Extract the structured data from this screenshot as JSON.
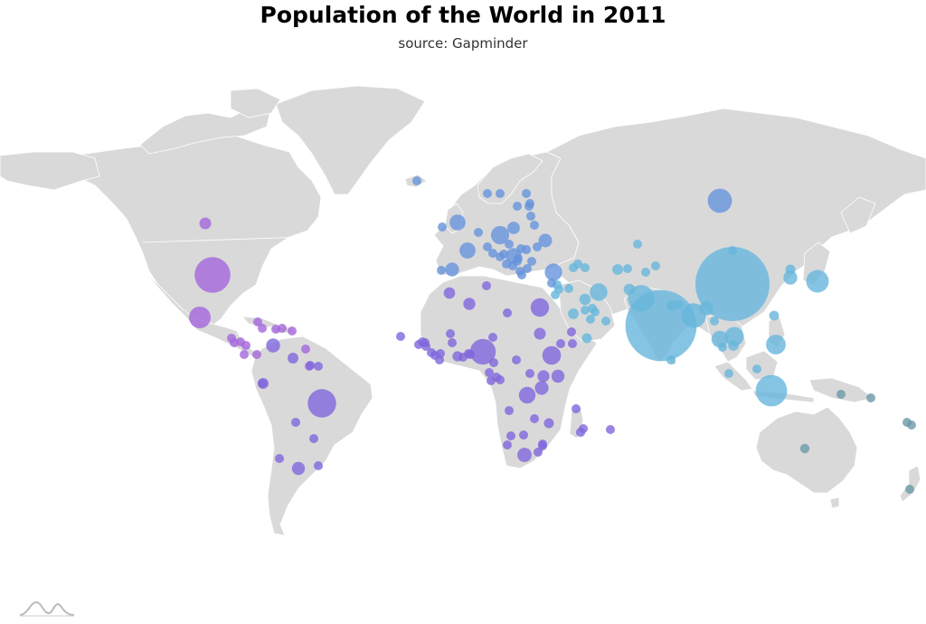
{
  "title": "Population of the World in 2011",
  "subtitle": "source: Gapminder",
  "colors": {
    "land": "#d9d9d9",
    "border": "#ffffff",
    "north_america": "#a467dc",
    "south_america_africa": "#8067dc",
    "europe": "#6794dc",
    "asia": "#67b7dc",
    "oceania": "#6c9aa8"
  },
  "logo_icon": "amcharts-logo-icon",
  "bubbles": [
    {
      "id": "us",
      "group": "north_america",
      "value": 313
    },
    {
      "id": "ca",
      "group": "north_america",
      "value": 34
    },
    {
      "id": "mx",
      "group": "north_america",
      "value": 115
    },
    {
      "id": "gt",
      "group": "north_america",
      "value": 15
    },
    {
      "id": "hn",
      "group": "north_america",
      "value": 8
    },
    {
      "id": "sv",
      "group": "north_america",
      "value": 6
    },
    {
      "id": "ni",
      "group": "north_america",
      "value": 6
    },
    {
      "id": "cr",
      "group": "north_america",
      "value": 5
    },
    {
      "id": "pa",
      "group": "north_america",
      "value": 4
    },
    {
      "id": "cu",
      "group": "north_america",
      "value": 11
    },
    {
      "id": "ht",
      "group": "north_america",
      "value": 10
    },
    {
      "id": "do",
      "group": "north_america",
      "value": 10
    },
    {
      "id": "jm",
      "group": "north_america",
      "value": 3
    },
    {
      "id": "pr",
      "group": "north_america",
      "value": 4
    },
    {
      "id": "tt",
      "group": "north_america",
      "value": 1
    },
    {
      "id": "bz",
      "group": "north_america",
      "value": 1
    },
    {
      "id": "br",
      "group": "south_america",
      "value": 197
    },
    {
      "id": "co",
      "group": "south_america",
      "value": 47
    },
    {
      "id": "ve",
      "group": "south_america",
      "value": 29
    },
    {
      "id": "pe",
      "group": "south_america",
      "value": 29
    },
    {
      "id": "ar",
      "group": "south_america",
      "value": 41
    },
    {
      "id": "cl",
      "group": "south_america",
      "value": 17
    },
    {
      "id": "ec",
      "group": "south_america",
      "value": 15
    },
    {
      "id": "bo",
      "group": "south_america",
      "value": 10
    },
    {
      "id": "py",
      "group": "south_america",
      "value": 7
    },
    {
      "id": "uy",
      "group": "south_america",
      "value": 3
    },
    {
      "id": "gy",
      "group": "south_america",
      "value": 1
    },
    {
      "id": "sr",
      "group": "south_america",
      "value": 1
    },
    {
      "id": "ng",
      "group": "africa",
      "value": 162
    },
    {
      "id": "et",
      "group": "africa",
      "value": 85
    },
    {
      "id": "eg",
      "group": "africa",
      "value": 83
    },
    {
      "id": "cd",
      "group": "africa",
      "value": 68
    },
    {
      "id": "za",
      "group": "africa",
      "value": 50
    },
    {
      "id": "tz",
      "group": "africa",
      "value": 46
    },
    {
      "id": "ke",
      "group": "africa",
      "value": 42
    },
    {
      "id": "dz",
      "group": "africa",
      "value": 36
    },
    {
      "id": "ug",
      "group": "africa",
      "value": 35
    },
    {
      "id": "ma",
      "group": "africa",
      "value": 32
    },
    {
      "id": "sd",
      "group": "africa",
      "value": 34
    },
    {
      "id": "gh",
      "group": "africa",
      "value": 25
    },
    {
      "id": "mz",
      "group": "africa",
      "value": 24
    },
    {
      "id": "mg",
      "group": "africa",
      "value": 21
    },
    {
      "id": "cm",
      "group": "africa",
      "value": 20
    },
    {
      "id": "ci",
      "group": "africa",
      "value": 20
    },
    {
      "id": "ao",
      "group": "africa",
      "value": 20
    },
    {
      "id": "ne",
      "group": "africa",
      "value": 16
    },
    {
      "id": "bf",
      "group": "africa",
      "value": 17
    },
    {
      "id": "ml",
      "group": "africa",
      "value": 16
    },
    {
      "id": "mw",
      "group": "africa",
      "value": 15
    },
    {
      "id": "zm",
      "group": "africa",
      "value": 13
    },
    {
      "id": "sn",
      "group": "africa",
      "value": 13
    },
    {
      "id": "zw",
      "group": "africa",
      "value": 13
    },
    {
      "id": "td",
      "group": "africa",
      "value": 12
    },
    {
      "id": "gn",
      "group": "africa",
      "value": 10
    },
    {
      "id": "rw",
      "group": "africa",
      "value": 11
    },
    {
      "id": "bi",
      "group": "africa",
      "value": 9
    },
    {
      "id": "tn",
      "group": "africa",
      "value": 11
    },
    {
      "id": "so",
      "group": "africa",
      "value": 10
    },
    {
      "id": "bj",
      "group": "africa",
      "value": 9
    },
    {
      "id": "ss",
      "group": "africa",
      "value": 10
    },
    {
      "id": "tg",
      "group": "africa",
      "value": 6
    },
    {
      "id": "ly",
      "group": "africa",
      "value": 6
    },
    {
      "id": "sl",
      "group": "africa",
      "value": 6
    },
    {
      "id": "lr",
      "group": "africa",
      "value": 4
    },
    {
      "id": "cf",
      "group": "africa",
      "value": 4
    },
    {
      "id": "mr",
      "group": "africa",
      "value": 4
    },
    {
      "id": "er",
      "group": "africa",
      "value": 5
    },
    {
      "id": "ga",
      "group": "africa",
      "value": 2
    },
    {
      "id": "cg",
      "group": "africa",
      "value": 4
    },
    {
      "id": "na",
      "group": "africa",
      "value": 2
    },
    {
      "id": "bw",
      "group": "africa",
      "value": 2
    },
    {
      "id": "ls",
      "group": "africa",
      "value": 2
    },
    {
      "id": "sz",
      "group": "africa",
      "value": 1
    },
    {
      "id": "gm",
      "group": "africa",
      "value": 2
    },
    {
      "id": "gw",
      "group": "africa",
      "value": 2
    },
    {
      "id": "gq",
      "group": "africa",
      "value": 1
    },
    {
      "id": "dj",
      "group": "africa",
      "value": 1
    },
    {
      "id": "cv",
      "group": "africa",
      "value": 1
    },
    {
      "id": "mu",
      "group": "africa",
      "value": 1
    },
    {
      "id": "km",
      "group": "africa",
      "value": 1
    },
    {
      "id": "ru",
      "group": "europe",
      "value": 143
    },
    {
      "id": "de",
      "group": "europe",
      "value": 82
    },
    {
      "id": "fr",
      "group": "europe",
      "value": 63
    },
    {
      "id": "gb",
      "group": "europe",
      "value": 62
    },
    {
      "id": "it",
      "group": "europe",
      "value": 61
    },
    {
      "id": "es",
      "group": "europe",
      "value": 46
    },
    {
      "id": "ua",
      "group": "europe",
      "value": 45
    },
    {
      "id": "pl",
      "group": "europe",
      "value": 38
    },
    {
      "id": "ro",
      "group": "europe",
      "value": 21
    },
    {
      "id": "nl",
      "group": "europe",
      "value": 17
    },
    {
      "id": "be",
      "group": "europe",
      "value": 11
    },
    {
      "id": "gr",
      "group": "europe",
      "value": 11
    },
    {
      "id": "pt",
      "group": "europe",
      "value": 11
    },
    {
      "id": "cz",
      "group": "europe",
      "value": 10
    },
    {
      "id": "hu",
      "group": "europe",
      "value": 10
    },
    {
      "id": "by",
      "group": "europe",
      "value": 9
    },
    {
      "id": "se",
      "group": "europe",
      "value": 9
    },
    {
      "id": "at",
      "group": "europe",
      "value": 8
    },
    {
      "id": "rs",
      "group": "europe",
      "value": 7
    },
    {
      "id": "ch",
      "group": "europe",
      "value": 8
    },
    {
      "id": "bg",
      "group": "europe",
      "value": 7
    },
    {
      "id": "dk",
      "group": "europe",
      "value": 6
    },
    {
      "id": "sk",
      "group": "europe",
      "value": 5
    },
    {
      "id": "fi",
      "group": "europe",
      "value": 5
    },
    {
      "id": "no",
      "group": "europe",
      "value": 5
    },
    {
      "id": "ie",
      "group": "europe",
      "value": 5
    },
    {
      "id": "hr",
      "group": "europe",
      "value": 4
    },
    {
      "id": "ba",
      "group": "europe",
      "value": 4
    },
    {
      "id": "md",
      "group": "europe",
      "value": 4
    },
    {
      "id": "lt",
      "group": "europe",
      "value": 3
    },
    {
      "id": "al",
      "group": "europe",
      "value": 3
    },
    {
      "id": "lv",
      "group": "europe",
      "value": 2
    },
    {
      "id": "mk",
      "group": "europe",
      "value": 2
    },
    {
      "id": "si",
      "group": "europe",
      "value": 2
    },
    {
      "id": "ee",
      "group": "europe",
      "value": 1
    },
    {
      "id": "is",
      "group": "europe",
      "value": 0.3
    },
    {
      "id": "tr",
      "group": "europe",
      "value": 74
    },
    {
      "id": "cy",
      "group": "europe",
      "value": 1
    },
    {
      "id": "cn",
      "group": "asia",
      "value": 1347
    },
    {
      "id": "in",
      "group": "asia",
      "value": 1241
    },
    {
      "id": "id",
      "group": "asia",
      "value": 242
    },
    {
      "id": "pk",
      "group": "asia",
      "value": 176
    },
    {
      "id": "bd",
      "group": "asia",
      "value": 150
    },
    {
      "id": "jp",
      "group": "asia",
      "value": 126
    },
    {
      "id": "ph",
      "group": "asia",
      "value": 95
    },
    {
      "id": "vn",
      "group": "asia",
      "value": 88
    },
    {
      "id": "ir",
      "group": "asia",
      "value": 75
    },
    {
      "id": "th",
      "group": "asia",
      "value": 69
    },
    {
      "id": "mm",
      "group": "asia",
      "value": 48
    },
    {
      "id": "kr",
      "group": "asia",
      "value": 48
    },
    {
      "id": "af",
      "group": "asia",
      "value": 32
    },
    {
      "id": "iq",
      "group": "asia",
      "value": 32
    },
    {
      "id": "uz",
      "group": "asia",
      "value": 28
    },
    {
      "id": "sa",
      "group": "asia",
      "value": 28
    },
    {
      "id": "my",
      "group": "asia",
      "value": 28
    },
    {
      "id": "np",
      "group": "asia",
      "value": 30
    },
    {
      "id": "ye",
      "group": "asia",
      "value": 24
    },
    {
      "id": "kp",
      "group": "asia",
      "value": 24
    },
    {
      "id": "sy",
      "group": "asia",
      "value": 21
    },
    {
      "id": "lk",
      "group": "asia",
      "value": 21
    },
    {
      "id": "kz",
      "group": "asia",
      "value": 16
    },
    {
      "id": "kh",
      "group": "asia",
      "value": 14
    },
    {
      "id": "az",
      "group": "asia",
      "value": 9
    },
    {
      "id": "ae",
      "group": "asia",
      "value": 8
    },
    {
      "id": "tj",
      "group": "asia",
      "value": 7
    },
    {
      "id": "il",
      "group": "asia",
      "value": 8
    },
    {
      "id": "la",
      "group": "asia",
      "value": 6
    },
    {
      "id": "jo",
      "group": "asia",
      "value": 6
    },
    {
      "id": "kg",
      "group": "asia",
      "value": 5
    },
    {
      "id": "tm",
      "group": "asia",
      "value": 5
    },
    {
      "id": "lb",
      "group": "asia",
      "value": 4
    },
    {
      "id": "ge",
      "group": "asia",
      "value": 4
    },
    {
      "id": "am",
      "group": "asia",
      "value": 3
    },
    {
      "id": "om",
      "group": "asia",
      "value": 3
    },
    {
      "id": "kw",
      "group": "asia",
      "value": 3
    },
    {
      "id": "mn",
      "group": "asia",
      "value": 3
    },
    {
      "id": "qa",
      "group": "asia",
      "value": 2
    },
    {
      "id": "bh",
      "group": "asia",
      "value": 1
    },
    {
      "id": "tl",
      "group": "asia",
      "value": 1
    },
    {
      "id": "bt",
      "group": "asia",
      "value": 1
    },
    {
      "id": "sg",
      "group": "asia",
      "value": 5
    },
    {
      "id": "tw",
      "group": "asia",
      "value": 23
    },
    {
      "id": "au",
      "group": "oceania",
      "value": 22
    },
    {
      "id": "pg",
      "group": "oceania",
      "value": 7
    },
    {
      "id": "nz",
      "group": "oceania",
      "value": 4
    },
    {
      "id": "sb",
      "group": "oceania",
      "value": 1
    },
    {
      "id": "fj",
      "group": "oceania",
      "value": 1
    },
    {
      "id": "vu",
      "group": "oceania",
      "value": 0.3
    }
  ]
}
